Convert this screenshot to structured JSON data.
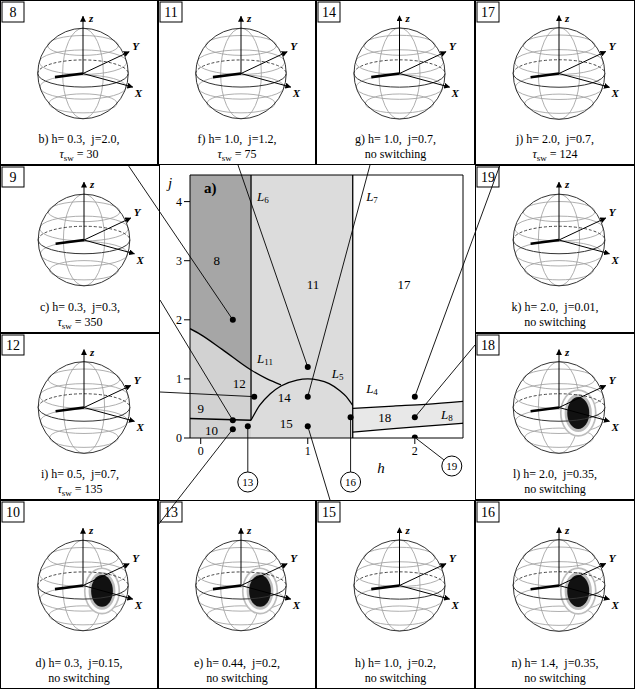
{
  "chart_data": {
    "type": "line",
    "title": "a)",
    "x_label": "h",
    "y_label": "j",
    "xlim": [
      -0.1,
      2.45
    ],
    "xticks": [
      0,
      1,
      2
    ],
    "ylim": [
      0,
      4.45
    ],
    "yticks": [
      0,
      1,
      2,
      3,
      4
    ],
    "shading": [
      {
        "color": "#a6a6a6",
        "h": [
          -0.1,
          0.47
        ],
        "j": [
          4.45,
          4.45
        ]
      },
      {
        "color": "#d2d2d2",
        "h": [
          -0.1,
          0,
          0.2,
          0.47
        ],
        "j": [
          1.85,
          1.75,
          1.5,
          1.15
        ]
      },
      {
        "color": "#dcdcdc",
        "h": [
          0.47,
          1.42
        ],
        "j": [
          4.45,
          4.45
        ]
      },
      {
        "color": "#e8e8e8",
        "h": [
          1.42,
          1.8,
          2.1,
          2.45
        ],
        "j": [
          0.5,
          0.54,
          0.57,
          0.62
        ]
      },
      {
        "color": "#ffffff",
        "h": [
          1.42,
          1.8,
          2.1,
          2.45
        ],
        "j": [
          0.1,
          0.16,
          0.2,
          0.25
        ]
      }
    ],
    "boundaries": [
      {
        "label": "L6",
        "label_at": [
          0.58,
          4.1
        ],
        "h": [
          0.47,
          0.47
        ],
        "j": [
          4.45,
          0.3
        ]
      },
      {
        "label": "L7",
        "label_at": [
          1.6,
          4.1
        ],
        "h": [
          1.42,
          1.42
        ],
        "j": [
          4.45,
          0
        ]
      },
      {
        "label": "L11",
        "label_at": [
          0.6,
          1.35
        ],
        "h": [
          -0.1,
          0,
          0.2,
          0.47,
          0.62,
          0.75
        ],
        "j": [
          1.85,
          1.75,
          1.5,
          1.15,
          1.0,
          0.9
        ]
      },
      {
        "label": "L5",
        "label_at": [
          1.28,
          1.1
        ],
        "h": [
          0.47,
          0.55,
          0.65,
          0.75,
          0.9,
          1.0,
          1.1,
          1.2,
          1.3,
          1.36,
          1.42
        ],
        "j": [
          0.3,
          0.55,
          0.75,
          0.88,
          0.98,
          1.0,
          0.98,
          0.92,
          0.8,
          0.7,
          0.55
        ]
      },
      {
        "label": "L4",
        "label_at": [
          1.6,
          0.85
        ],
        "h": [
          1.42,
          1.8,
          2.1,
          2.45
        ],
        "j": [
          0.5,
          0.54,
          0.57,
          0.62
        ]
      },
      {
        "label": "L8",
        "label_at": [
          2.3,
          0.4
        ],
        "h": [
          1.42,
          1.8,
          2.1,
          2.45
        ],
        "j": [
          0.1,
          0.16,
          0.2,
          0.25
        ]
      },
      {
        "h": [
          -0.1,
          0.47
        ],
        "j": [
          0.33,
          0.3
        ]
      }
    ],
    "region_labels": [
      {
        "text": "8",
        "h": 0.15,
        "j": 3.0
      },
      {
        "text": "11",
        "h": 1.05,
        "j": 2.6
      },
      {
        "text": "17",
        "h": 1.9,
        "j": 2.6
      },
      {
        "text": "9",
        "h": 0.0,
        "j": 0.5
      },
      {
        "text": "10",
        "h": 0.1,
        "j": 0.12
      },
      {
        "text": "12",
        "h": 0.36,
        "j": 0.92
      },
      {
        "text": "14",
        "h": 0.78,
        "j": 0.68
      },
      {
        "text": "15",
        "h": 0.8,
        "j": 0.25
      },
      {
        "text": "18",
        "h": 1.72,
        "j": 0.34
      }
    ],
    "points": [
      {
        "panel": 8,
        "h": 0.3,
        "j": 2.0
      },
      {
        "panel": 9,
        "h": 0.3,
        "j": 0.3
      },
      {
        "panel": 10,
        "h": 0.3,
        "j": 0.15
      },
      {
        "panel": 11,
        "h": 1.0,
        "j": 1.2
      },
      {
        "panel": 12,
        "h": 0.5,
        "j": 0.7
      },
      {
        "panel": 13,
        "h": 0.44,
        "j": 0.2
      },
      {
        "panel": 14,
        "h": 1.0,
        "j": 0.7
      },
      {
        "panel": 15,
        "h": 1.0,
        "j": 0.2
      },
      {
        "panel": 16,
        "h": 1.4,
        "j": 0.35
      },
      {
        "panel": 17,
        "h": 2.0,
        "j": 0.7
      },
      {
        "panel": 18,
        "h": 2.0,
        "j": 0.35
      },
      {
        "panel": 19,
        "h": 2.0,
        "j": 0.01
      }
    ],
    "circled_labels": [
      "13",
      "16",
      "19"
    ]
  },
  "tau_label": {
    "symbol": "τ",
    "sub": "sw",
    "sep": "="
  },
  "sphere_axes": {
    "z": "z",
    "y": "Y",
    "x": "X"
  },
  "panels": [
    {
      "number": 8,
      "caption": "b) h= 0.3,  j=2.0,",
      "tau_sw": 30
    },
    {
      "number": 11,
      "caption": "f) h= 1.0,  j=1.2,",
      "tau_sw": 75
    },
    {
      "number": 14,
      "caption": "g) h= 1.0,  j=0.7,",
      "result": "no switching"
    },
    {
      "number": 17,
      "caption": "j) h= 2.0,  j=0.7,",
      "tau_sw": 124
    },
    {
      "number": 9,
      "caption": "c) h= 0.3,  j=0.3,",
      "tau_sw": 350
    },
    {
      "number": 12,
      "caption": "i) h= 0.5,  j=0.7,",
      "tau_sw": 135
    },
    {
      "number": 19,
      "caption": "k) h= 2.0,  j=0.01,",
      "result": "no switching"
    },
    {
      "number": 18,
      "caption": "l) h= 2.0,  j=0.35,",
      "result": "no switching"
    },
    {
      "number": 10,
      "caption": "d) h= 0.3,  j=0.15,",
      "result": "no switching"
    },
    {
      "number": 13,
      "caption": "e) h= 0.44,  j=0.2,",
      "result": "no switching"
    },
    {
      "number": 15,
      "caption": "h) h= 1.0,  j=0.2,",
      "result": "no switching"
    },
    {
      "number": 16,
      "caption": "n) h= 1.4,  j=0.35,",
      "result": "no switching"
    }
  ]
}
